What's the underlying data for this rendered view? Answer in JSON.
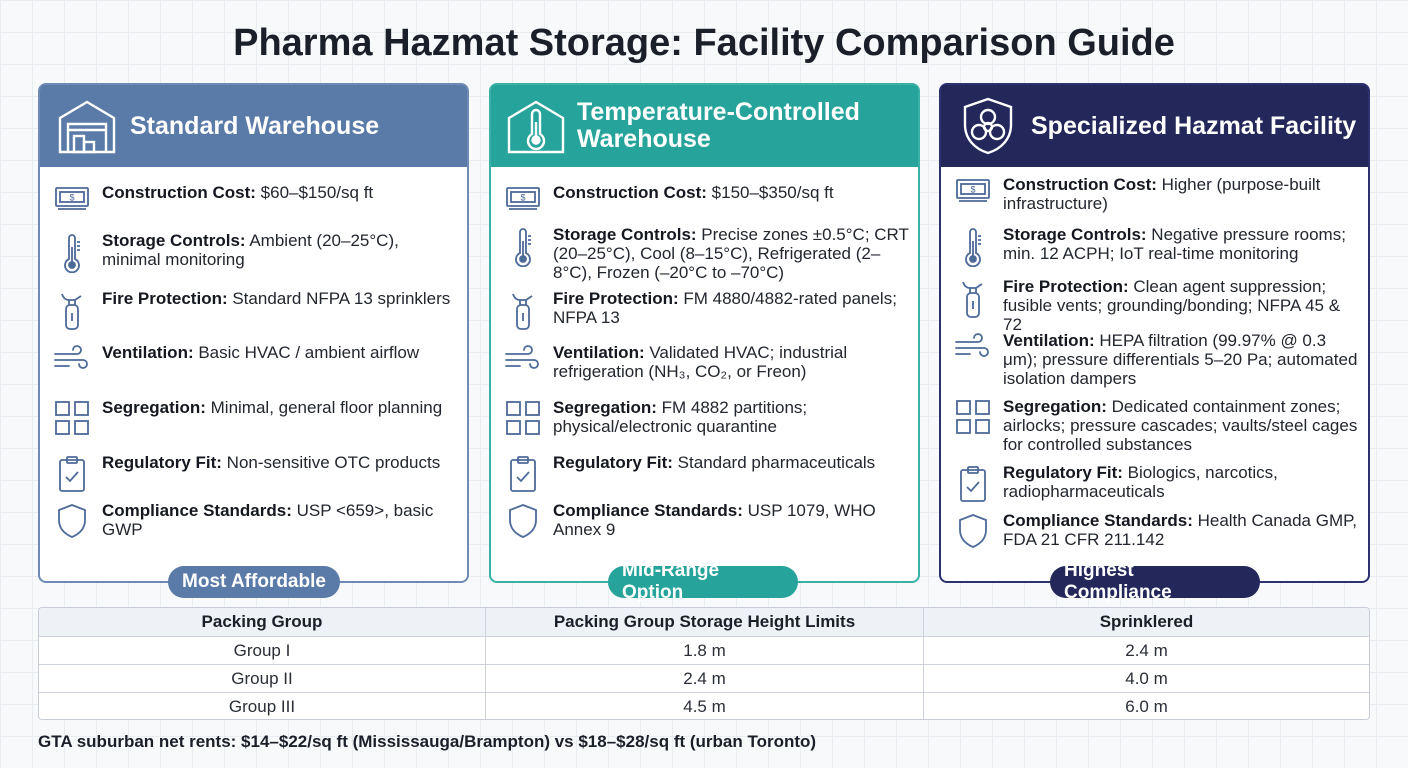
{
  "title": "Pharma Hazmat Storage: Facility Comparison Guide",
  "colors": {
    "card1": "#5a7aa8",
    "card2": "#26a39a",
    "card3": "#232759"
  },
  "cards": [
    {
      "title": "Standard Warehouse",
      "icon": "warehouse-icon",
      "badge": "Most Affordable",
      "rows": [
        {
          "icon": "money-icon",
          "label": "Construction Cost:",
          "text": " $60–$150/sq ft"
        },
        {
          "icon": "thermometer-icon",
          "label": "Storage Controls:",
          "text": " Ambient (20–25°C), minimal monitoring"
        },
        {
          "icon": "fire-extinguisher-icon",
          "label": "Fire Protection:",
          "text": " Standard NFPA 13 sprinklers"
        },
        {
          "icon": "wind-icon",
          "label": "Ventilation:",
          "text": " Basic HVAC / ambient airflow"
        },
        {
          "icon": "grid-icon",
          "label": "Segregation:",
          "text": " Minimal, general floor planning"
        },
        {
          "icon": "clipboard-check-icon",
          "label": "Regulatory Fit:",
          "text": " Non-sensitive OTC products"
        },
        {
          "icon": "shield-icon",
          "label": "Compliance Standards:",
          "text": " USP <659>, basic GWP"
        }
      ]
    },
    {
      "title": "Temperature-Controlled Warehouse",
      "icon": "temperature-warehouse-icon",
      "badge": "Mid-Range Option",
      "rows": [
        {
          "icon": "money-icon",
          "label": "Construction Cost:",
          "text": " $150–$350/sq ft"
        },
        {
          "icon": "thermometer-icon",
          "label": "Storage Controls:",
          "text": " Precise zones ±0.5°C; CRT (20–25°C), Cool (8–15°C), Refrigerated (2–8°C), Frozen (–20°C to –70°C)"
        },
        {
          "icon": "fire-extinguisher-icon",
          "label": "Fire Protection:",
          "text": " FM 4880/4882-rated panels; NFPA 13"
        },
        {
          "icon": "wind-icon",
          "label": "Ventilation:",
          "text": " Validated HVAC; industrial refrigeration (NH₃, CO₂, or Freon)"
        },
        {
          "icon": "grid-icon",
          "label": "Segregation:",
          "text": " FM 4882 partitions; physical/electronic quarantine"
        },
        {
          "icon": "clipboard-check-icon",
          "label": "Regulatory Fit:",
          "text": " Standard pharmaceuticals"
        },
        {
          "icon": "shield-icon",
          "label": "Compliance Standards:",
          "text": " USP 1079, WHO Annex 9"
        }
      ]
    },
    {
      "title": "Specialized Hazmat Facility",
      "icon": "biohazard-shield-icon",
      "badge": "Highest Compliance",
      "rows": [
        {
          "icon": "money-icon",
          "label": "Construction Cost:",
          "text": " Higher (purpose-built infrastructure)"
        },
        {
          "icon": "thermometer-icon",
          "label": "Storage Controls:",
          "text": " Negative pressure rooms; min. 12 ACPH; IoT real-time monitoring"
        },
        {
          "icon": "fire-extinguisher-icon",
          "label": "Fire Protection:",
          "text": " Clean agent suppression; fusible vents; grounding/bonding; NFPA 45 & 72"
        },
        {
          "icon": "wind-icon",
          "label": "Ventilation:",
          "text": " HEPA filtration (99.97% @ 0.3 μm); pressure differentials 5–20 Pa; automated isolation dampers"
        },
        {
          "icon": "grid-icon",
          "label": "Segregation:",
          "text": " Dedicated containment zones; airlocks; pressure cascades; vaults/steel cages for controlled substances"
        },
        {
          "icon": "clipboard-check-icon",
          "label": "Regulatory Fit:",
          "text": " Biologics, narcotics, radiopharmaceuticals"
        },
        {
          "icon": "shield-icon",
          "label": "Compliance Standards:",
          "text": " Health Canada GMP, FDA 21 CFR 211.142"
        }
      ]
    }
  ],
  "table": {
    "headers": [
      "Packing Group",
      "Packing Group Storage Height Limits",
      "Sprinklered"
    ],
    "rows": [
      [
        "Group I",
        "1.8 m",
        "2.4 m"
      ],
      [
        "Group II",
        "2.4 m",
        "4.0 m"
      ],
      [
        "Group III",
        "4.5 m",
        "6.0 m"
      ]
    ]
  },
  "footnote": "GTA suburban net rents: $14–$22/sq ft (Mississauga/Brampton) vs $18–$28/sq ft (urban Toronto)"
}
